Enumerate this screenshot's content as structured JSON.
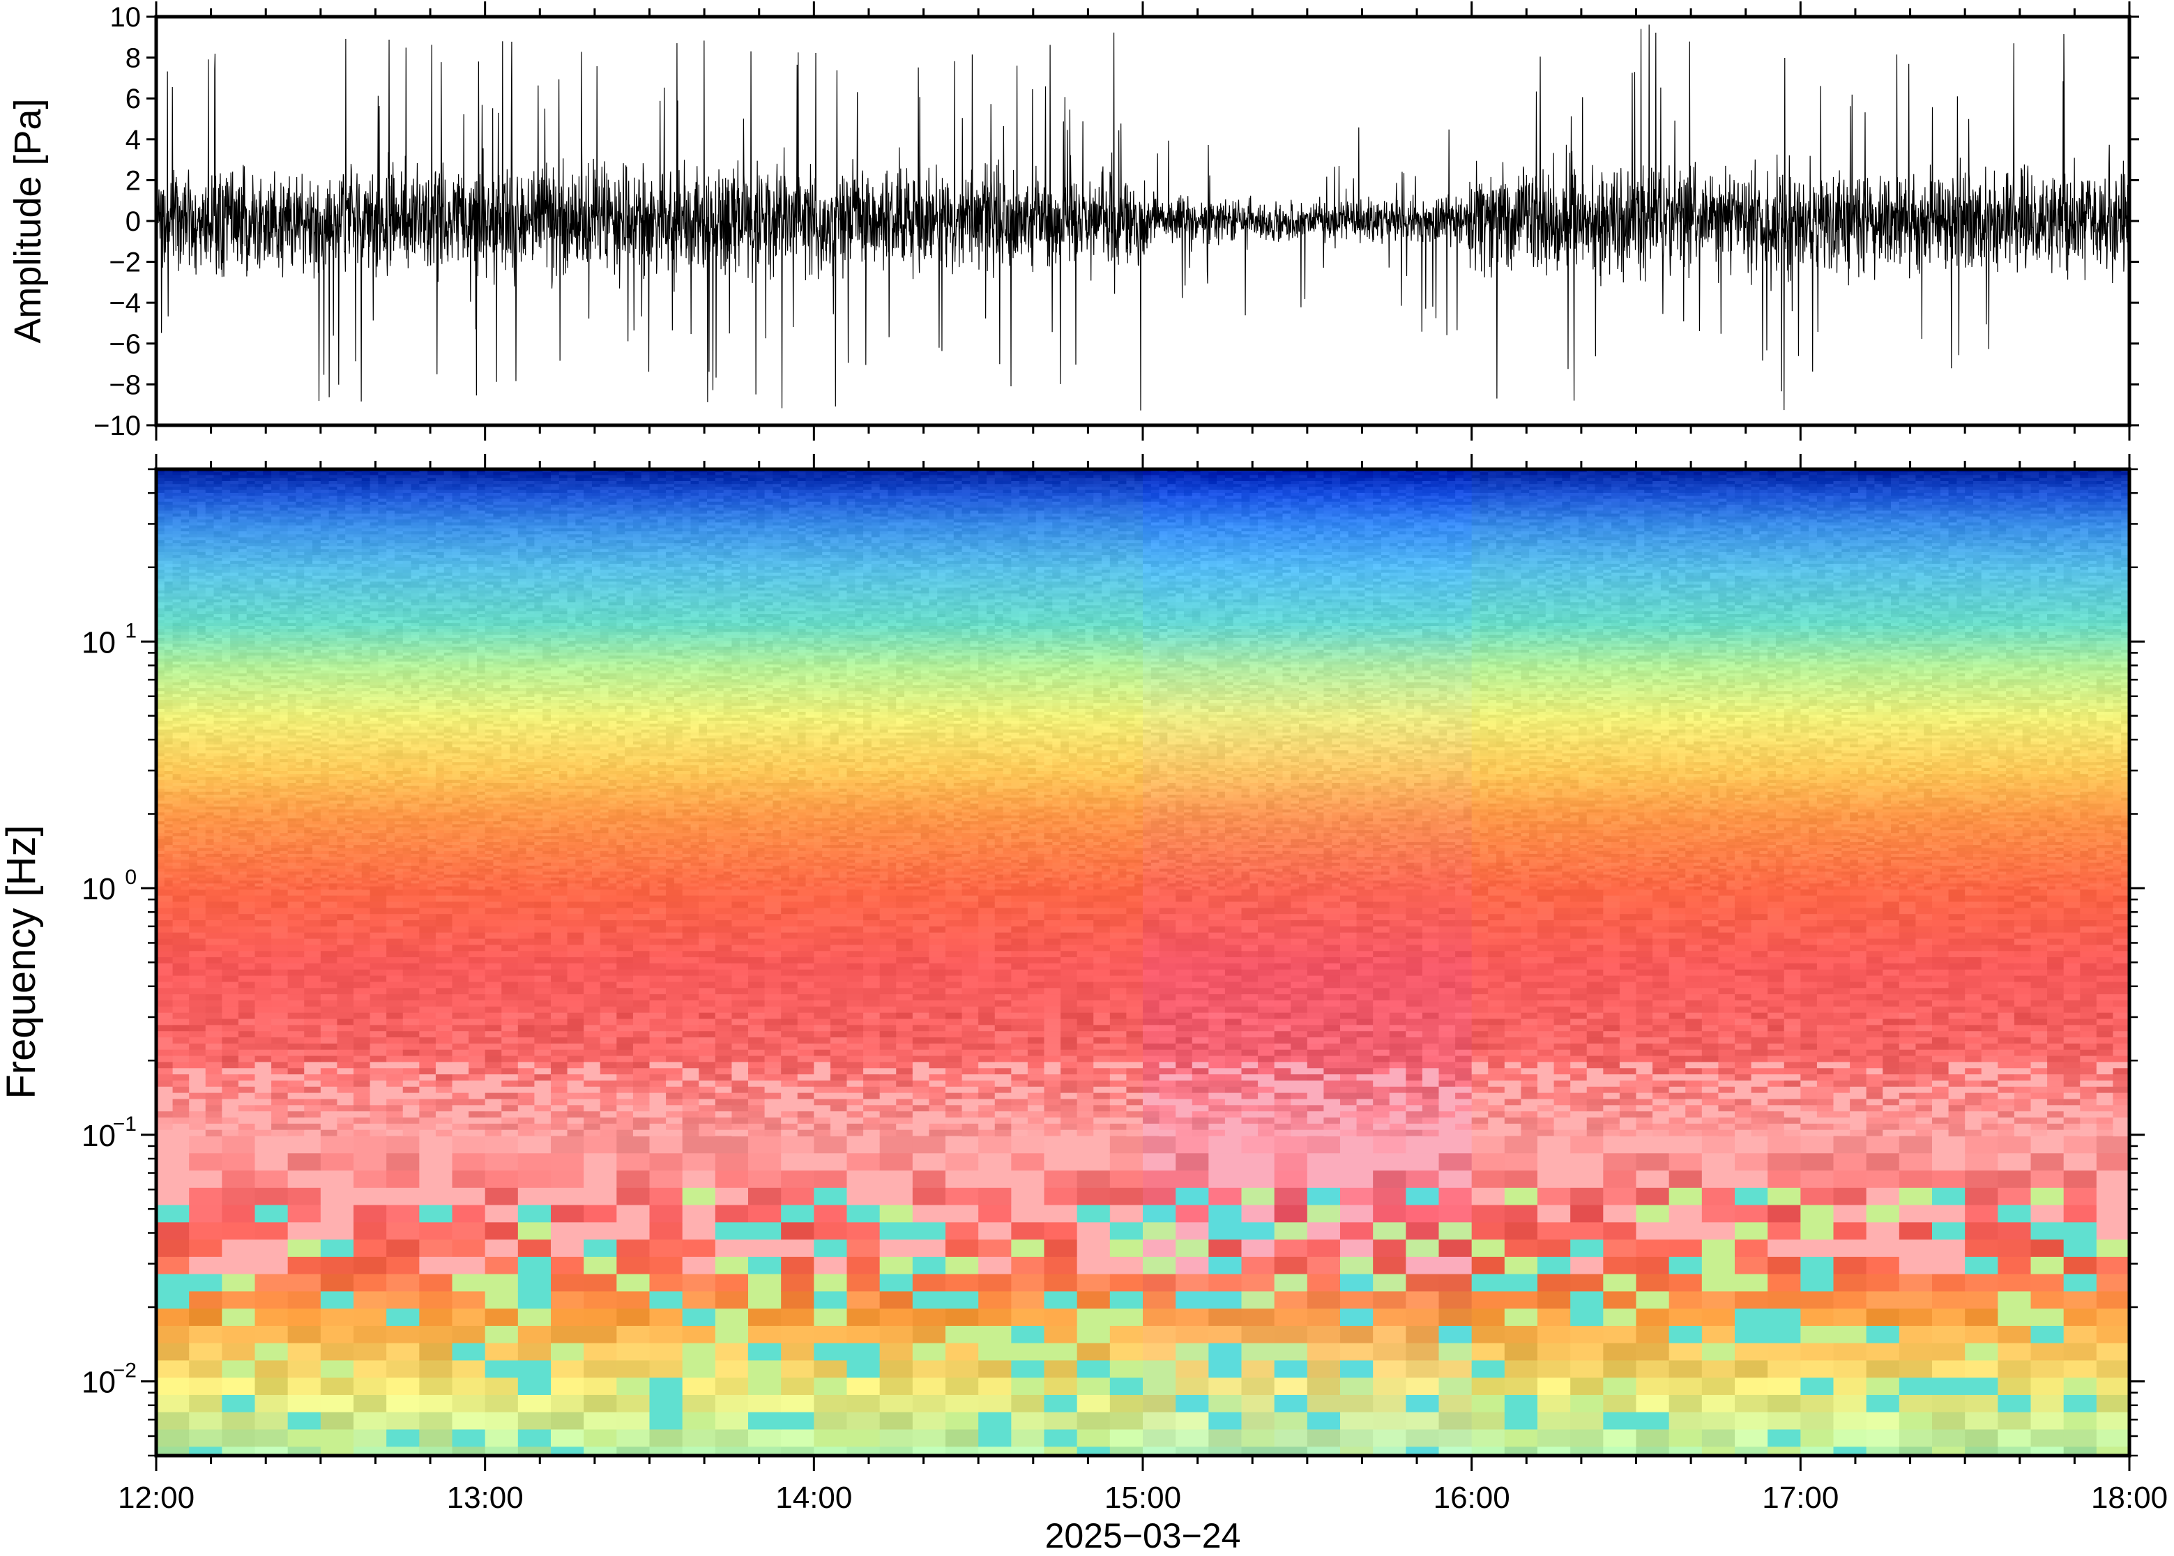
{
  "chart_data": [
    {
      "type": "line",
      "panel": "waveform",
      "ylabel": "Amplitude [Pa]",
      "xlim": [
        "12:00",
        "18:00"
      ],
      "ylim": [
        -10,
        10
      ],
      "yticks": [
        -10,
        -8,
        -6,
        -4,
        -2,
        0,
        2,
        4,
        6,
        8,
        10
      ],
      "ytick_labels": [
        "−10",
        "−8",
        "−6",
        "−4",
        "−2",
        "0",
        "2",
        "4",
        "6",
        "8",
        "10"
      ],
      "line_color": "#000000",
      "grid": false,
      "envelope": {
        "time": [
          "12:00",
          "12:30",
          "13:00",
          "13:30",
          "14:00",
          "14:30",
          "15:00",
          "15:01",
          "15:30",
          "15:45",
          "15:59",
          "16:00",
          "16:30",
          "17:00",
          "17:30",
          "18:00"
        ],
        "p99_abs": [
          4.5,
          4.5,
          5.0,
          4.5,
          4.5,
          4.3,
          4.3,
          2.0,
          1.8,
          1.8,
          2.2,
          4.3,
          4.5,
          4.2,
          4.5,
          4.5
        ],
        "peak_abs": [
          8,
          9,
          9,
          9.5,
          9.5,
          9,
          10,
          5,
          4.5,
          5,
          6,
          9,
          10,
          9.5,
          10,
          9
        ]
      }
    },
    {
      "type": "heatmap",
      "panel": "spectrogram",
      "ylabel": "Frequency [Hz]",
      "xlabel": "2025−03−24",
      "xlim": [
        "12:00",
        "18:00"
      ],
      "ylim": [
        0.005,
        50
      ],
      "yscale": "log",
      "yticks": [
        0.01,
        0.1,
        1,
        10
      ],
      "ytick_labels": [
        {
          "base": "10",
          "exp": "−2"
        },
        {
          "base": "10",
          "exp": "−1"
        },
        {
          "base": "10",
          "exp": "0"
        },
        {
          "base": "10",
          "exp": "1"
        }
      ],
      "xticks": [
        "12:00",
        "13:00",
        "14:00",
        "15:00",
        "16:00",
        "17:00",
        "18:00"
      ],
      "colormap": [
        "#8b0000",
        "#ff5a5a",
        "#ffb0b0",
        "#f06060",
        "#ff9040",
        "#ffc060",
        "#f0f070",
        "#c8f090",
        "#60e0d0",
        "#40b0f0",
        "#2060d0",
        "#001a8f"
      ],
      "band_profile": {
        "frequency_hz": [
          50,
          40,
          30,
          20,
          12,
          8,
          5,
          3,
          2,
          1,
          0.5,
          0.2,
          0.1,
          0.05,
          0.03,
          0.02,
          0.01,
          0.005
        ],
        "colour": [
          "#0020a0",
          "#1e56d8",
          "#3a8ee8",
          "#58c0e8",
          "#68dcc8",
          "#b4f098",
          "#f0f078",
          "#ffc858",
          "#ff9848",
          "#ff6848",
          "#f85a5a",
          "#f86868",
          "#ff9898",
          "#f86060",
          "#ff7050",
          "#ffa040",
          "#f0e878",
          "#a8f0b0"
        ]
      }
    }
  ]
}
